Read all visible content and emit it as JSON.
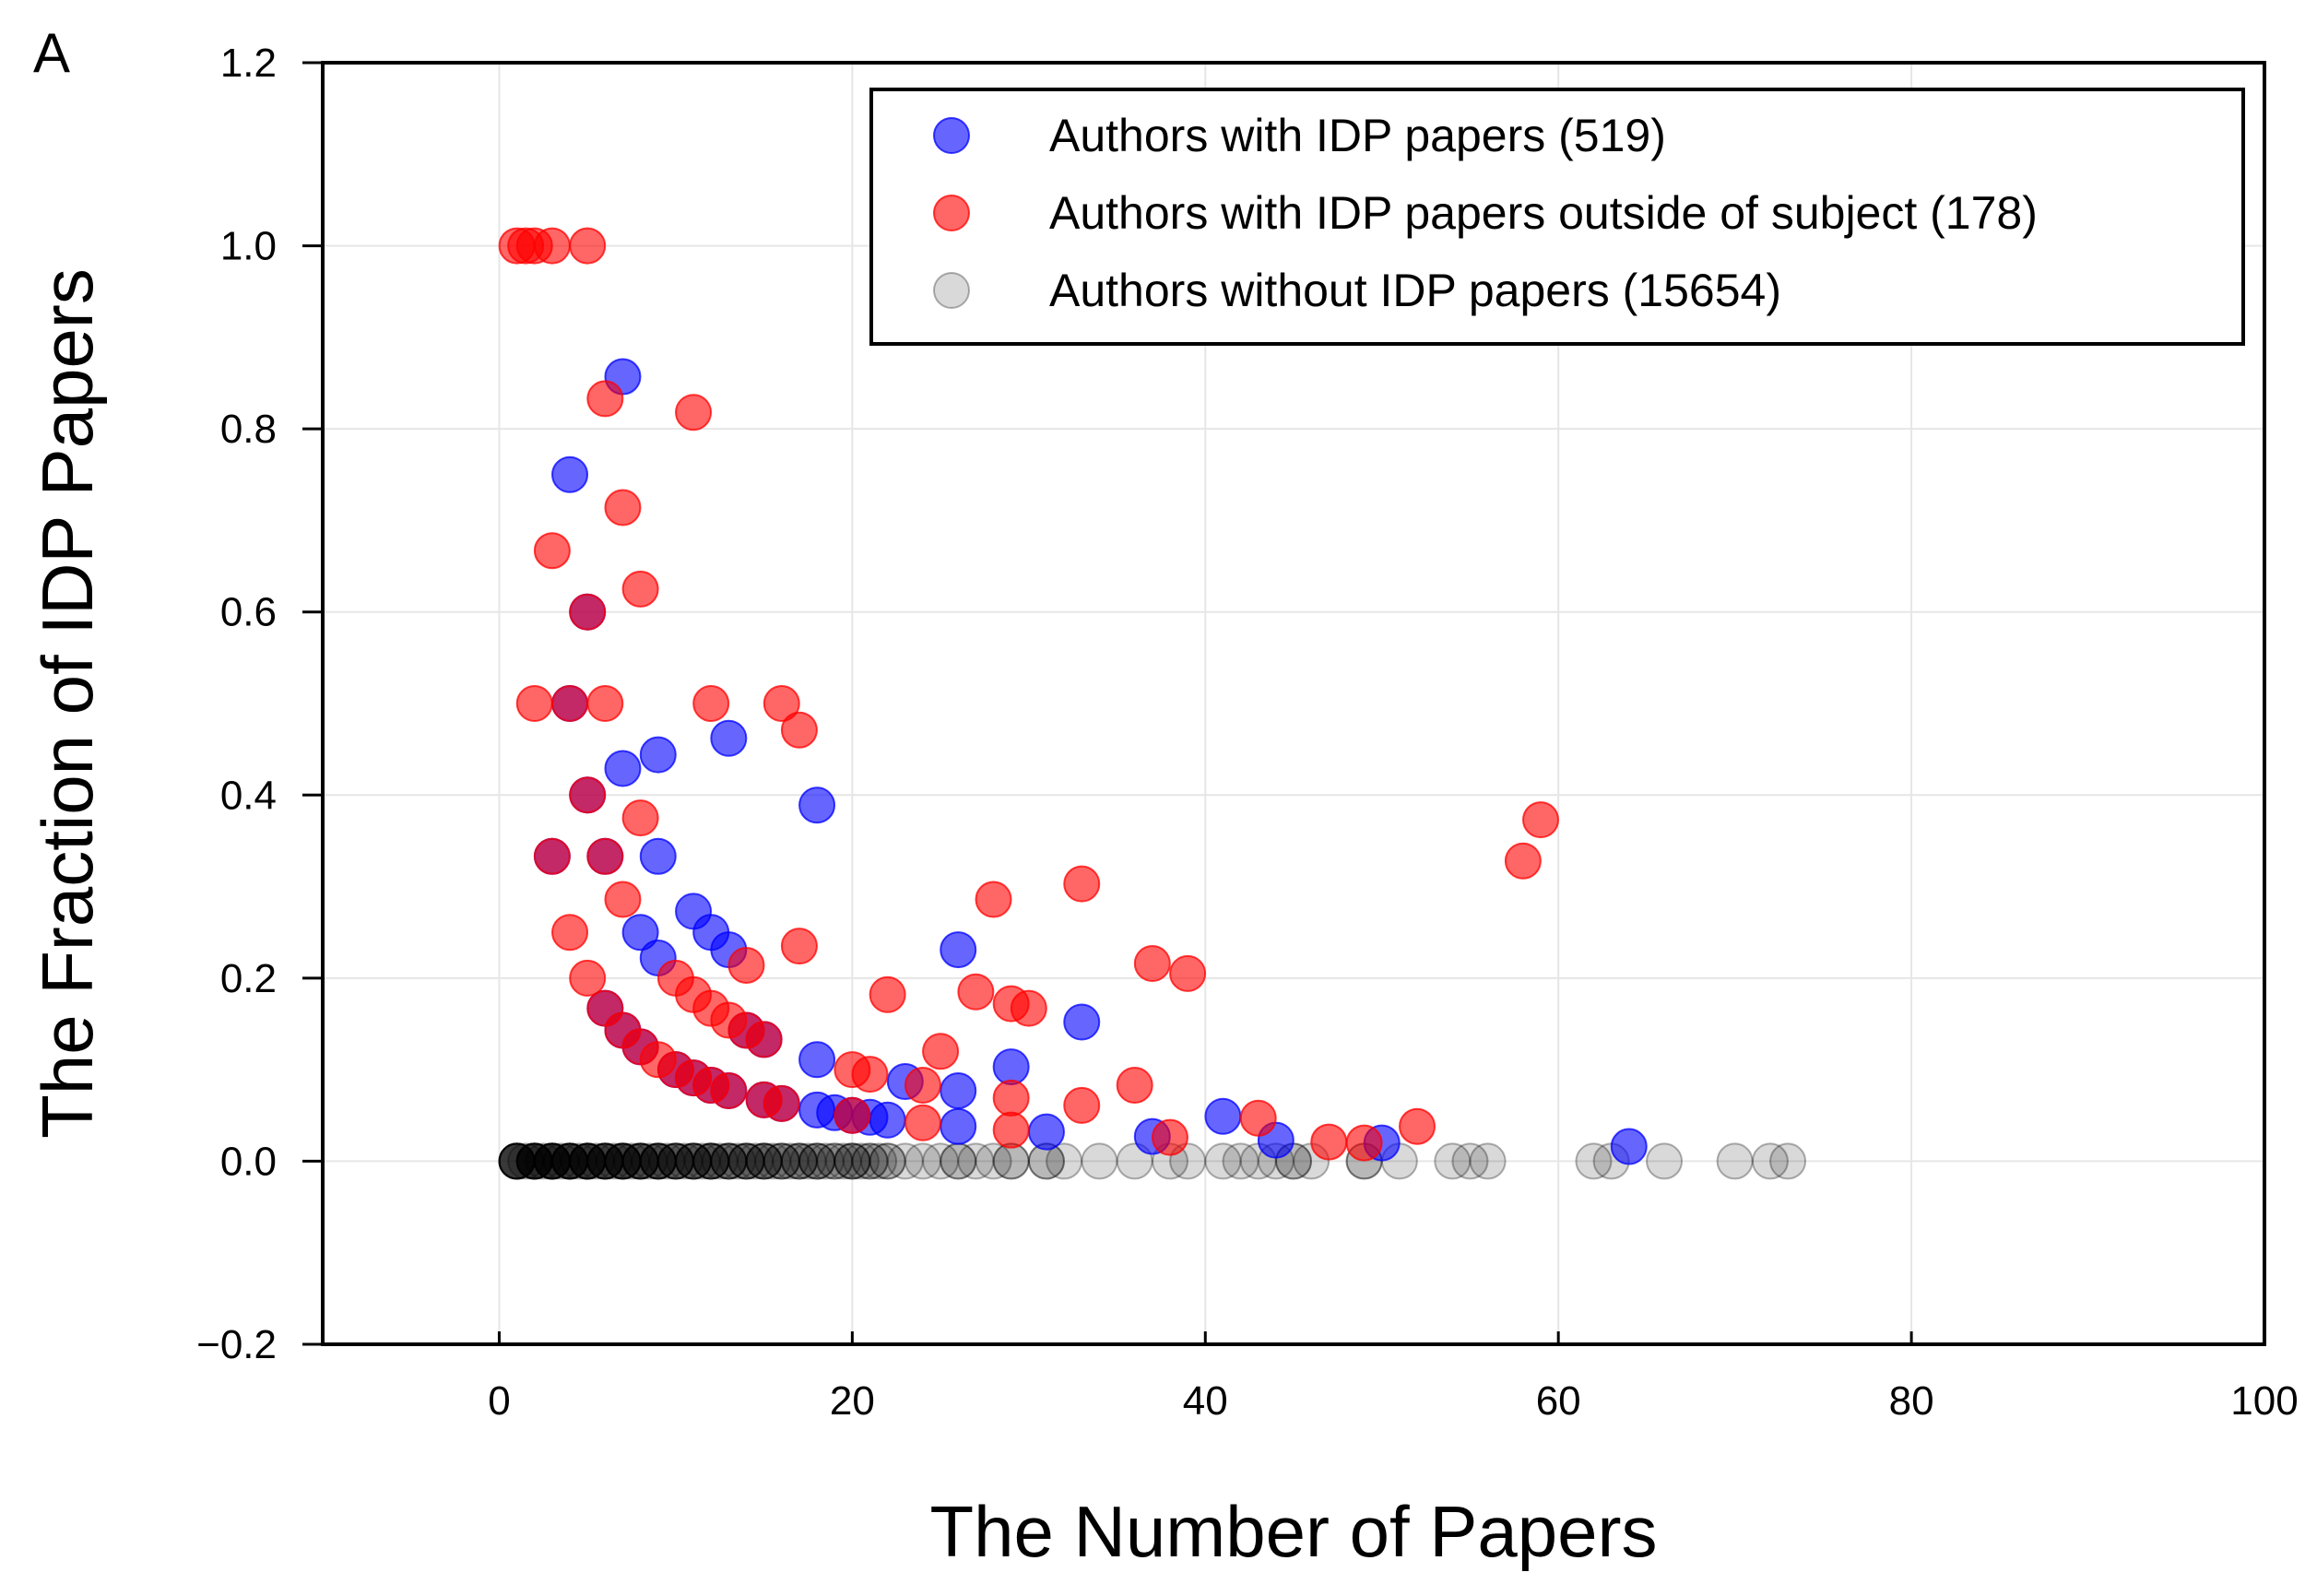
{
  "panel_label": "A",
  "chart_data": {
    "type": "scatter",
    "title": "",
    "xlabel": "The Number of Papers",
    "ylabel": "The Fraction of IDP Papers",
    "xlim": [
      -10,
      100
    ],
    "ylim": [
      -0.2,
      1.2
    ],
    "xticks": [
      0,
      20,
      40,
      60,
      80,
      100
    ],
    "yticks": [
      -0.2,
      0.0,
      0.2,
      0.4,
      0.6,
      0.8,
      1.0,
      1.2
    ],
    "xtick_labels": [
      "0",
      "20",
      "40",
      "60",
      "80",
      "100"
    ],
    "ytick_labels": [
      "−0.2",
      "0.0",
      "0.2",
      "0.4",
      "0.6",
      "0.8",
      "1.0",
      "1.2"
    ],
    "grid": true,
    "legend_position": "top-right",
    "series": [
      {
        "name": "Authors with IDP papers (519)",
        "color": "#0000ff",
        "opacity": 0.6,
        "points": [
          [
            7,
            0.857
          ],
          [
            4,
            0.75
          ],
          [
            13,
            0.462
          ],
          [
            9,
            0.444
          ],
          [
            7,
            0.429
          ],
          [
            5,
            0.4
          ],
          [
            18,
            0.389
          ],
          [
            9,
            0.333
          ],
          [
            6,
            0.333
          ],
          [
            11,
            0.273
          ],
          [
            12,
            0.25
          ],
          [
            8,
            0.25
          ],
          [
            13,
            0.231
          ],
          [
            26,
            0.231
          ],
          [
            9,
            0.222
          ],
          [
            6,
            0.167
          ],
          [
            15,
            0.133
          ],
          [
            8,
            0.125
          ],
          [
            33,
            0.152
          ],
          [
            29,
            0.103
          ],
          [
            18,
            0.111
          ],
          [
            23,
            0.087
          ],
          [
            26,
            0.077
          ],
          [
            12,
            0.083
          ],
          [
            10,
            0.1
          ],
          [
            18,
            0.056
          ],
          [
            19,
            0.053
          ],
          [
            21,
            0.048
          ],
          [
            22,
            0.045
          ],
          [
            26,
            0.038
          ],
          [
            31,
            0.032
          ],
          [
            37,
            0.027
          ],
          [
            41,
            0.049
          ],
          [
            44,
            0.023
          ],
          [
            50,
            0.02
          ],
          [
            64,
            0.016
          ],
          [
            5,
            0.6
          ],
          [
            4,
            0.5
          ],
          [
            3,
            0.333
          ],
          [
            7,
            0.143
          ],
          [
            11,
            0.091
          ],
          [
            14,
            0.143
          ],
          [
            16,
            0.063
          ],
          [
            20,
            0.05
          ],
          [
            13,
            0.077
          ],
          [
            15,
            0.067
          ]
        ]
      },
      {
        "name": "Authors with IDP papers outside of subject (178)",
        "color": "#ff0000",
        "opacity": 0.6,
        "points": [
          [
            1,
            1.0
          ],
          [
            1.5,
            1.0
          ],
          [
            2,
            1.0
          ],
          [
            3,
            1.0
          ],
          [
            5,
            1.0
          ],
          [
            6,
            0.833
          ],
          [
            11,
            0.818
          ],
          [
            7,
            0.714
          ],
          [
            3,
            0.667
          ],
          [
            8,
            0.625
          ],
          [
            5,
            0.6
          ],
          [
            2,
            0.5
          ],
          [
            4,
            0.5
          ],
          [
            6,
            0.5
          ],
          [
            12,
            0.5
          ],
          [
            16,
            0.5
          ],
          [
            17,
            0.471
          ],
          [
            5,
            0.4
          ],
          [
            8,
            0.375
          ],
          [
            59,
            0.373
          ],
          [
            58,
            0.328
          ],
          [
            3,
            0.333
          ],
          [
            6,
            0.333
          ],
          [
            33,
            0.303
          ],
          [
            7,
            0.286
          ],
          [
            28,
            0.286
          ],
          [
            4,
            0.25
          ],
          [
            17,
            0.235
          ],
          [
            37,
            0.216
          ],
          [
            39,
            0.205
          ],
          [
            14,
            0.214
          ],
          [
            5,
            0.2
          ],
          [
            10,
            0.2
          ],
          [
            11,
            0.182
          ],
          [
            22,
            0.182
          ],
          [
            27,
            0.185
          ],
          [
            29,
            0.172
          ],
          [
            30,
            0.167
          ],
          [
            12,
            0.167
          ],
          [
            13,
            0.154
          ],
          [
            7,
            0.143
          ],
          [
            14,
            0.143
          ],
          [
            15,
            0.133
          ],
          [
            25,
            0.12
          ],
          [
            9,
            0.111
          ],
          [
            10,
            0.1
          ],
          [
            20,
            0.1
          ],
          [
            21,
            0.095
          ],
          [
            11,
            0.091
          ],
          [
            12,
            0.083
          ],
          [
            24,
            0.083
          ],
          [
            36,
            0.083
          ],
          [
            13,
            0.077
          ],
          [
            15,
            0.067
          ],
          [
            29,
            0.069
          ],
          [
            16,
            0.063
          ],
          [
            33,
            0.061
          ],
          [
            20,
            0.05
          ],
          [
            43,
            0.047
          ],
          [
            24,
            0.042
          ],
          [
            52,
            0.038
          ],
          [
            29,
            0.034
          ],
          [
            38,
            0.026
          ],
          [
            47,
            0.021
          ],
          [
            49,
            0.02
          ],
          [
            6,
            0.167
          ],
          [
            8,
            0.125
          ]
        ]
      },
      {
        "name": "Authors without IDP papers (15654)",
        "color": "#000000",
        "opacity": 0.15,
        "points": [
          [
            1,
            0
          ],
          [
            1.5,
            0
          ],
          [
            2,
            0
          ],
          [
            2.5,
            0
          ],
          [
            3,
            0
          ],
          [
            3.5,
            0
          ],
          [
            4,
            0
          ],
          [
            4.5,
            0
          ],
          [
            5,
            0
          ],
          [
            5.5,
            0
          ],
          [
            6,
            0
          ],
          [
            6.5,
            0
          ],
          [
            7,
            0
          ],
          [
            7.5,
            0
          ],
          [
            8,
            0
          ],
          [
            8.5,
            0
          ],
          [
            9,
            0
          ],
          [
            9.5,
            0
          ],
          [
            10,
            0
          ],
          [
            10.5,
            0
          ],
          [
            11,
            0
          ],
          [
            11.5,
            0
          ],
          [
            12,
            0
          ],
          [
            12.5,
            0
          ],
          [
            13,
            0
          ],
          [
            13.5,
            0
          ],
          [
            14,
            0
          ],
          [
            14.5,
            0
          ],
          [
            15,
            0
          ],
          [
            15.5,
            0
          ],
          [
            16,
            0
          ],
          [
            16.5,
            0
          ],
          [
            17,
            0
          ],
          [
            17.5,
            0
          ],
          [
            18,
            0
          ],
          [
            18.5,
            0
          ],
          [
            19,
            0
          ],
          [
            19.5,
            0
          ],
          [
            20,
            0
          ],
          [
            20.5,
            0
          ],
          [
            21,
            0
          ],
          [
            21.5,
            0
          ],
          [
            22,
            0
          ],
          [
            23,
            0
          ],
          [
            24,
            0
          ],
          [
            25,
            0
          ],
          [
            26,
            0
          ],
          [
            27,
            0
          ],
          [
            28,
            0
          ],
          [
            29,
            0
          ],
          [
            31,
            0
          ],
          [
            32,
            0
          ],
          [
            34,
            0
          ],
          [
            36,
            0
          ],
          [
            38,
            0
          ],
          [
            39,
            0
          ],
          [
            41,
            0
          ],
          [
            42,
            0
          ],
          [
            43,
            0
          ],
          [
            44,
            0
          ],
          [
            45,
            0
          ],
          [
            46,
            0
          ],
          [
            49,
            0
          ],
          [
            51,
            0
          ],
          [
            54,
            0
          ],
          [
            55,
            0
          ],
          [
            56,
            0
          ],
          [
            62,
            0
          ],
          [
            63,
            0
          ],
          [
            66,
            0
          ],
          [
            70,
            0
          ],
          [
            72,
            0
          ],
          [
            73,
            0
          ],
          [
            1,
            0
          ],
          [
            2,
            0
          ],
          [
            3,
            0
          ],
          [
            4,
            0
          ],
          [
            5,
            0
          ],
          [
            6,
            0
          ],
          [
            7,
            0
          ],
          [
            8,
            0
          ],
          [
            9,
            0
          ],
          [
            10,
            0
          ],
          [
            11,
            0
          ],
          [
            12,
            0
          ],
          [
            13,
            0
          ],
          [
            14,
            0
          ],
          [
            15,
            0
          ],
          [
            16,
            0
          ],
          [
            17,
            0
          ],
          [
            18,
            0
          ],
          [
            19,
            0
          ],
          [
            20,
            0
          ],
          [
            21,
            0
          ],
          [
            22,
            0
          ],
          [
            26,
            0
          ],
          [
            29,
            0
          ],
          [
            31,
            0
          ],
          [
            45,
            0
          ],
          [
            49,
            0
          ],
          [
            1,
            0
          ],
          [
            2,
            0
          ],
          [
            3,
            0
          ],
          [
            4,
            0
          ],
          [
            5,
            0
          ],
          [
            6,
            0
          ],
          [
            7,
            0
          ],
          [
            8,
            0
          ],
          [
            9,
            0
          ],
          [
            10,
            0
          ],
          [
            11,
            0
          ],
          [
            12,
            0
          ],
          [
            13,
            0
          ],
          [
            14,
            0
          ],
          [
            15,
            0
          ],
          [
            16,
            0
          ],
          [
            17,
            0
          ],
          [
            18,
            0
          ],
          [
            20,
            0
          ],
          [
            1,
            0
          ],
          [
            2,
            0
          ],
          [
            3,
            0
          ],
          [
            4,
            0
          ],
          [
            5,
            0
          ],
          [
            6,
            0
          ],
          [
            7,
            0
          ],
          [
            8,
            0
          ],
          [
            9,
            0
          ],
          [
            10,
            0
          ],
          [
            11,
            0
          ],
          [
            12,
            0
          ],
          [
            13,
            0
          ],
          [
            14,
            0
          ],
          [
            15,
            0
          ],
          [
            1,
            0
          ],
          [
            2,
            0
          ],
          [
            3,
            0
          ],
          [
            4,
            0
          ],
          [
            5,
            0
          ],
          [
            6,
            0
          ],
          [
            7,
            0
          ],
          [
            8,
            0
          ],
          [
            9,
            0
          ],
          [
            10,
            0
          ],
          [
            11,
            0
          ],
          [
            12,
            0
          ],
          [
            1,
            0
          ],
          [
            2,
            0
          ],
          [
            3,
            0
          ],
          [
            4,
            0
          ],
          [
            5,
            0
          ],
          [
            6,
            0
          ],
          [
            7,
            0
          ],
          [
            8,
            0
          ],
          [
            9,
            0
          ],
          [
            1,
            0
          ],
          [
            2,
            0
          ],
          [
            3,
            0
          ],
          [
            4,
            0
          ],
          [
            5,
            0
          ],
          [
            6,
            0
          ],
          [
            7,
            0
          ],
          [
            1,
            0
          ],
          [
            2,
            0
          ],
          [
            3,
            0
          ],
          [
            4,
            0
          ],
          [
            5,
            0
          ],
          [
            1,
            0
          ],
          [
            2,
            0
          ],
          [
            3,
            0
          ]
        ]
      }
    ]
  }
}
